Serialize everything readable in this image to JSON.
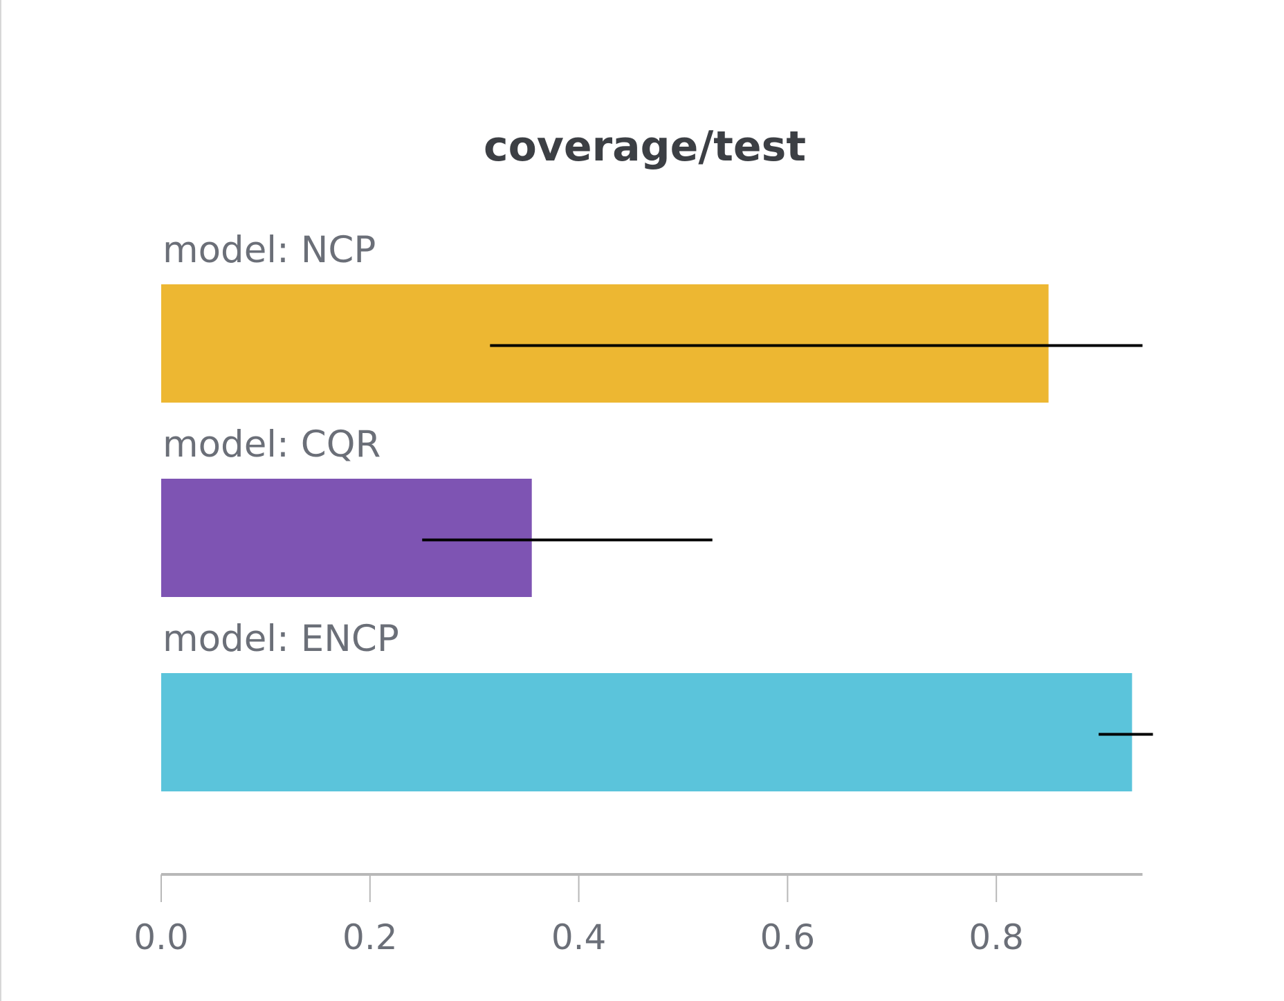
{
  "chart_data": {
    "type": "bar",
    "orientation": "horizontal",
    "title": "coverage/test",
    "xlabel": "",
    "ylabel": "",
    "xlim": [
      0,
      0.94
    ],
    "xticks": [
      0.0,
      0.2,
      0.4,
      0.6,
      0.8
    ],
    "xtick_labels": [
      "0.0",
      "0.2",
      "0.4",
      "0.6",
      "0.8"
    ],
    "grid": false,
    "legend": "none",
    "categories": [
      "model: NCP",
      "model: CQR",
      "model: ENCP"
    ],
    "values": [
      0.85,
      0.355,
      0.93
    ],
    "error_bars": [
      {
        "low": 0.315,
        "high": 0.94
      },
      {
        "low": 0.25,
        "high": 0.528
      },
      {
        "low": 0.898,
        "high": 0.95
      }
    ],
    "colors": [
      "#EDB732",
      "#7E54B3",
      "#5BC4DB"
    ],
    "error_bar_color": "#000000"
  }
}
